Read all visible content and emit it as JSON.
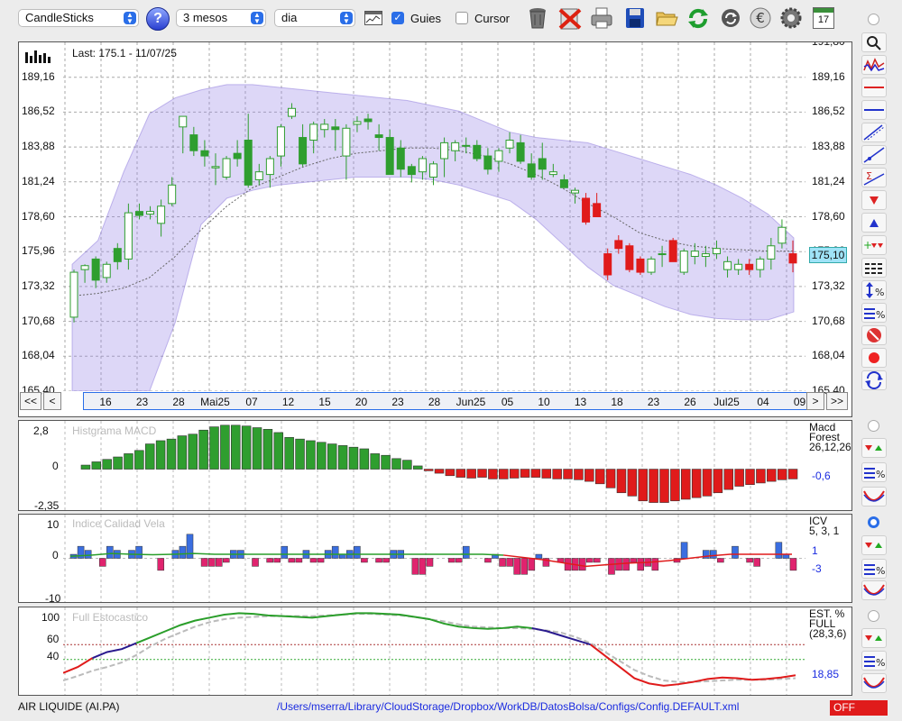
{
  "toolbar": {
    "chart_type": "CandleSticks",
    "period": "3 mesos",
    "interval": "dia",
    "guides_label": "Guies",
    "guides_checked": true,
    "cursor_label": "Cursor",
    "cursor_checked": false,
    "icons": [
      "trash-icon",
      "delete-icon",
      "print-icon",
      "save-icon",
      "folder-icon",
      "refresh-icon",
      "sync-icon",
      "euro-icon",
      "gear-icon",
      "calendar-icon"
    ],
    "calendar_day": "17"
  },
  "price_panel": {
    "last_label": "Last: 175.1 - 11/07/25",
    "y_ticks": [
      "189,16",
      "186,52",
      "183,88",
      "181,24",
      "178,60",
      "175,96",
      "173,32",
      "170,68",
      "168,04",
      "165,40"
    ],
    "top_cut_label": "191,80",
    "current_price": "175,10",
    "accent_color": "#2f9e2f",
    "down_color": "#e01b1b"
  },
  "nav": {
    "first": "<<",
    "prev": "<",
    "next": ">",
    "last": ">>",
    "date_labels": [
      "16",
      "23",
      "28",
      "Mai25",
      "07",
      "12",
      "15",
      "20",
      "23",
      "28",
      "Jun25",
      "05",
      "10",
      "13",
      "18",
      "23",
      "26",
      "Jul25",
      "04",
      "09"
    ]
  },
  "macd_panel": {
    "title": "Histgrama MACD",
    "y_ticks": [
      "2,8",
      "0",
      "-2,35"
    ],
    "legend_line1": "Macd",
    "legend_line2": "Forest",
    "legend_line3": "26,12,26",
    "value": "-0,6"
  },
  "icv_panel": {
    "title": "Indice Calidad Vela",
    "y_ticks": [
      "10",
      "0",
      "-10"
    ],
    "legend_line1": "ICV",
    "legend_line2": "5, 3, 1",
    "value1": "1",
    "value2": "-3"
  },
  "stoch_panel": {
    "title": "Full Estocastico",
    "y_ticks": [
      "100",
      "60",
      "40",
      "0"
    ],
    "legend_line1": "EST. %",
    "legend_line2": "FULL",
    "legend_line3": "(28,3,6)",
    "value": "18,85"
  },
  "statusbar": {
    "symbol": "AIR LIQUIDE (AI.PA)",
    "path": "/Users/mserra/Library/CloudStorage/Dropbox/WorkDB/DatosBolsa/Configs/Config.DEFAULT.xml",
    "state": "OFF"
  },
  "chart_data": [
    {
      "type": "candlestick",
      "y_min": 165.4,
      "y_max": 191.8,
      "candles": [
        {
          "o": 171.0,
          "h": 174.6,
          "l": 170.6,
          "c": 174.4
        },
        {
          "o": 174.6,
          "h": 175.0,
          "l": 173.6,
          "c": 174.9
        },
        {
          "o": 175.4,
          "h": 175.6,
          "l": 173.2,
          "c": 173.8
        },
        {
          "o": 174.0,
          "h": 175.2,
          "l": 173.6,
          "c": 175.0
        },
        {
          "o": 176.2,
          "h": 176.6,
          "l": 174.6,
          "c": 175.2
        },
        {
          "o": 175.4,
          "h": 179.6,
          "l": 174.6,
          "c": 178.9
        },
        {
          "o": 179.0,
          "h": 179.6,
          "l": 178.4,
          "c": 178.7
        },
        {
          "o": 178.8,
          "h": 179.4,
          "l": 178.4,
          "c": 179.0
        },
        {
          "o": 178.1,
          "h": 179.9,
          "l": 177.1,
          "c": 179.4
        },
        {
          "o": 179.6,
          "h": 181.6,
          "l": 179.4,
          "c": 181.0
        },
        {
          "o": 185.4,
          "h": 186.2,
          "l": 183.4,
          "c": 186.2
        },
        {
          "o": 184.8,
          "h": 185.4,
          "l": 183.2,
          "c": 183.6
        },
        {
          "o": 183.6,
          "h": 184.4,
          "l": 182.4,
          "c": 183.2
        },
        {
          "o": 182.3,
          "h": 183.4,
          "l": 181.0,
          "c": 182.4
        },
        {
          "o": 181.6,
          "h": 183.2,
          "l": 181.4,
          "c": 183.0
        },
        {
          "o": 183.4,
          "h": 184.4,
          "l": 182.4,
          "c": 183.0
        },
        {
          "o": 184.4,
          "h": 186.4,
          "l": 180.8,
          "c": 181.0
        },
        {
          "o": 181.4,
          "h": 182.6,
          "l": 181.0,
          "c": 182.0
        },
        {
          "o": 181.8,
          "h": 183.2,
          "l": 180.8,
          "c": 183.0
        },
        {
          "o": 183.2,
          "h": 185.6,
          "l": 182.4,
          "c": 185.4
        },
        {
          "o": 186.2,
          "h": 187.2,
          "l": 186.0,
          "c": 186.8
        },
        {
          "o": 184.6,
          "h": 185.6,
          "l": 182.4,
          "c": 182.6
        },
        {
          "o": 184.4,
          "h": 185.8,
          "l": 183.4,
          "c": 185.6
        },
        {
          "o": 185.2,
          "h": 186.0,
          "l": 184.6,
          "c": 185.6
        },
        {
          "o": 185.4,
          "h": 186.0,
          "l": 183.6,
          "c": 185.2
        },
        {
          "o": 183.2,
          "h": 185.6,
          "l": 181.4,
          "c": 185.3
        },
        {
          "o": 185.6,
          "h": 186.2,
          "l": 185.0,
          "c": 185.8
        },
        {
          "o": 186.0,
          "h": 186.4,
          "l": 185.2,
          "c": 185.8
        },
        {
          "o": 184.8,
          "h": 185.6,
          "l": 183.6,
          "c": 184.6
        },
        {
          "o": 184.6,
          "h": 185.2,
          "l": 181.8,
          "c": 181.8
        },
        {
          "o": 183.8,
          "h": 184.4,
          "l": 181.6,
          "c": 182.2
        },
        {
          "o": 182.4,
          "h": 182.6,
          "l": 181.2,
          "c": 181.8
        },
        {
          "o": 182.0,
          "h": 183.2,
          "l": 181.4,
          "c": 183.0
        },
        {
          "o": 181.6,
          "h": 182.8,
          "l": 181.0,
          "c": 182.6
        },
        {
          "o": 183.0,
          "h": 184.6,
          "l": 181.6,
          "c": 184.2
        },
        {
          "o": 183.6,
          "h": 184.4,
          "l": 182.8,
          "c": 184.2
        },
        {
          "o": 184.0,
          "h": 184.6,
          "l": 183.4,
          "c": 184.0
        },
        {
          "o": 184.0,
          "h": 184.4,
          "l": 182.8,
          "c": 183.0
        },
        {
          "o": 183.2,
          "h": 183.8,
          "l": 181.8,
          "c": 182.2
        },
        {
          "o": 182.8,
          "h": 183.8,
          "l": 182.0,
          "c": 183.6
        },
        {
          "o": 183.8,
          "h": 185.0,
          "l": 183.4,
          "c": 184.4
        },
        {
          "o": 184.2,
          "h": 184.8,
          "l": 182.6,
          "c": 182.8
        },
        {
          "o": 182.6,
          "h": 183.4,
          "l": 181.4,
          "c": 181.6
        },
        {
          "o": 183.0,
          "h": 184.2,
          "l": 181.4,
          "c": 182.2
        },
        {
          "o": 181.8,
          "h": 182.6,
          "l": 181.6,
          "c": 182.0
        },
        {
          "o": 181.4,
          "h": 181.8,
          "l": 180.8,
          "c": 180.8
        },
        {
          "o": 180.4,
          "h": 180.8,
          "l": 179.6,
          "c": 180.6
        },
        {
          "o": 180.0,
          "h": 180.4,
          "l": 178.0,
          "c": 178.2
        },
        {
          "o": 179.6,
          "h": 180.4,
          "l": 178.6,
          "c": 178.6
        },
        {
          "o": 175.8,
          "h": 176.2,
          "l": 173.8,
          "c": 174.2
        },
        {
          "o": 176.8,
          "h": 177.2,
          "l": 175.8,
          "c": 176.2
        },
        {
          "o": 176.4,
          "h": 176.6,
          "l": 174.4,
          "c": 174.6
        },
        {
          "o": 175.4,
          "h": 175.6,
          "l": 174.2,
          "c": 174.4
        },
        {
          "o": 174.4,
          "h": 175.6,
          "l": 174.2,
          "c": 175.4
        },
        {
          "o": 175.8,
          "h": 176.4,
          "l": 174.8,
          "c": 175.8
        },
        {
          "o": 176.8,
          "h": 177.0,
          "l": 175.2,
          "c": 175.2
        },
        {
          "o": 174.4,
          "h": 176.2,
          "l": 174.2,
          "c": 176.0
        },
        {
          "o": 175.6,
          "h": 176.6,
          "l": 175.0,
          "c": 176.0
        },
        {
          "o": 175.6,
          "h": 176.4,
          "l": 174.8,
          "c": 175.8
        },
        {
          "o": 175.8,
          "h": 176.8,
          "l": 175.4,
          "c": 176.2
        },
        {
          "o": 174.6,
          "h": 175.6,
          "l": 174.0,
          "c": 175.2
        },
        {
          "o": 174.6,
          "h": 175.4,
          "l": 174.2,
          "c": 175.0
        },
        {
          "o": 175.0,
          "h": 175.4,
          "l": 174.2,
          "c": 174.6
        },
        {
          "o": 174.6,
          "h": 175.6,
          "l": 174.0,
          "c": 175.4
        },
        {
          "o": 175.4,
          "h": 177.0,
          "l": 174.6,
          "c": 176.4
        },
        {
          "o": 176.6,
          "h": 178.4,
          "l": 176.2,
          "c": 177.8
        },
        {
          "o": 175.8,
          "h": 176.8,
          "l": 174.4,
          "c": 175.1
        }
      ],
      "bb_upper": [
        175.0,
        176.8,
        182.0,
        186.4,
        187.6,
        188.2,
        188.6,
        188.6,
        188.4,
        188.2,
        188.0,
        187.8,
        187.6,
        187.4,
        187.0,
        186.6,
        185.8,
        185.0,
        184.6,
        184.4,
        184.2,
        183.6,
        183.0,
        182.4,
        181.8,
        181.0,
        180.0,
        178.8,
        177.0
      ],
      "bb_lower": [
        165.4,
        165.4,
        165.4,
        165.4,
        170.6,
        178.0,
        180.0,
        180.6,
        181.0,
        181.2,
        181.4,
        181.6,
        181.6,
        181.6,
        181.4,
        181.0,
        180.4,
        179.8,
        178.4,
        176.6,
        174.8,
        173.4,
        172.6,
        171.8,
        171.2,
        170.9,
        170.8,
        170.8,
        171.4
      ],
      "ma_dotted": [
        172.6,
        172.8,
        173.2,
        174.0,
        175.6,
        177.6,
        179.4,
        180.8,
        181.6,
        182.4,
        183.0,
        183.4,
        183.6,
        183.8,
        183.8,
        183.6,
        183.2,
        182.6,
        181.8,
        180.8,
        179.6,
        178.6,
        177.4,
        176.8,
        176.4,
        176.2,
        176.1,
        176.0,
        176.0
      ]
    },
    {
      "type": "bar",
      "title": "Histgrama MACD",
      "values": [
        0.25,
        0.45,
        0.6,
        0.75,
        0.95,
        1.15,
        1.55,
        1.75,
        1.85,
        2.05,
        2.15,
        2.4,
        2.6,
        2.7,
        2.7,
        2.65,
        2.55,
        2.45,
        2.25,
        1.95,
        1.85,
        1.75,
        1.65,
        1.55,
        1.45,
        1.35,
        1.25,
        0.95,
        0.85,
        0.65,
        0.55,
        0.2,
        -0.1,
        -0.25,
        -0.4,
        -0.5,
        -0.55,
        -0.5,
        -0.6,
        -0.6,
        -0.55,
        -0.5,
        -0.5,
        -0.55,
        -0.6,
        -0.6,
        -0.65,
        -0.75,
        -0.9,
        -1.15,
        -1.45,
        -1.65,
        -1.95,
        -2.05,
        -2.05,
        -1.95,
        -1.85,
        -1.75,
        -1.65,
        -1.45,
        -1.25,
        -1.05,
        -0.95,
        -0.85,
        -0.75,
        -0.65,
        -0.6
      ],
      "ylim": [
        -2.35,
        2.8
      ]
    },
    {
      "type": "bar",
      "title": "Indice Calidad Vela",
      "values": [
        1,
        3,
        2,
        0,
        -2,
        3,
        2,
        0,
        2,
        3,
        0,
        0,
        -3,
        0,
        2,
        3,
        6,
        0,
        -2,
        -2,
        -2,
        -1,
        2,
        2,
        0,
        -2,
        0,
        -1,
        -1,
        3,
        -1,
        -1,
        2,
        -1,
        -1,
        2,
        3,
        1,
        2,
        3,
        -1,
        0,
        -1,
        -1,
        2,
        2,
        0,
        -4,
        -4,
        -2,
        0,
        0,
        -1,
        -1,
        3,
        0,
        0,
        -1,
        1,
        -2,
        -2,
        -4,
        -4,
        -3,
        1,
        -2,
        0,
        -1,
        -3,
        -3,
        -3,
        -1,
        -1,
        0,
        -4,
        -3,
        -3,
        -1,
        -3,
        -2,
        -3,
        0,
        0,
        -1,
        4,
        0,
        0,
        2,
        2,
        -1,
        0,
        3,
        0,
        -1,
        -2,
        0,
        0,
        4,
        1,
        -3
      ],
      "signal_line": [
        0.5,
        0.8,
        1.2,
        1.0,
        0.9,
        1.0,
        1.2,
        1.0,
        1.0,
        1.0,
        1.0,
        1.0,
        1.0,
        1.0,
        1.0,
        1.0,
        1.0,
        1.0,
        1.0,
        1.0,
        1.0,
        0.8,
        0.2,
        -0.4,
        -1.2,
        -2.0,
        -1.6,
        -1.2,
        -1.0,
        -0.6,
        0.0,
        0.6,
        1.0,
        1.0,
        1.0,
        1.0
      ],
      "ylim": [
        -10,
        10
      ]
    },
    {
      "type": "line",
      "title": "Full Estocastico",
      "ylim": [
        0,
        100
      ],
      "k": [
        22,
        30,
        42,
        50,
        54,
        62,
        70,
        78,
        86,
        92,
        96,
        100,
        102,
        101,
        99,
        98,
        97,
        96,
        98,
        100,
        102,
        102,
        101,
        100,
        97,
        94,
        88,
        84,
        82,
        81,
        82,
        84,
        82,
        78,
        72,
        66,
        60,
        45,
        30,
        15,
        8,
        5,
        7,
        10,
        14,
        16,
        15,
        13,
        14,
        16,
        19
      ],
      "d": [
        12,
        18,
        25,
        30,
        36,
        46,
        58,
        68,
        76,
        84,
        90,
        94,
        96,
        97,
        98,
        98,
        98,
        98,
        99,
        100,
        101,
        101,
        100,
        99,
        97,
        94,
        91,
        87,
        84,
        83,
        82,
        82,
        81,
        79,
        76,
        70,
        62,
        50,
        38,
        26,
        18,
        12,
        10,
        10,
        11,
        12,
        13,
        13,
        13,
        14,
        15
      ]
    }
  ]
}
